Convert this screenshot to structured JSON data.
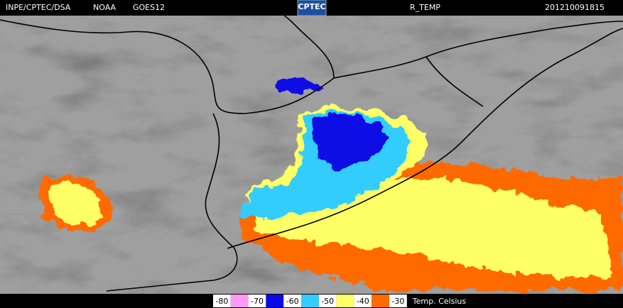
{
  "header": {
    "source": "INPE/CPTEC/DSA",
    "agency": "NOAA",
    "satellite": "GOES12",
    "logo": "CPTEC",
    "product": "R_TEMP",
    "timestamp": "201210091815"
  },
  "legend": {
    "labels": [
      "-80",
      "-70",
      "-60",
      "-50",
      "-40",
      "-30"
    ],
    "colors": [
      "#ff99ff",
      "#0a0ae6",
      "#33ccff",
      "#ffff66",
      "#ff6a00"
    ],
    "unit": "Temp. Celsius"
  }
}
